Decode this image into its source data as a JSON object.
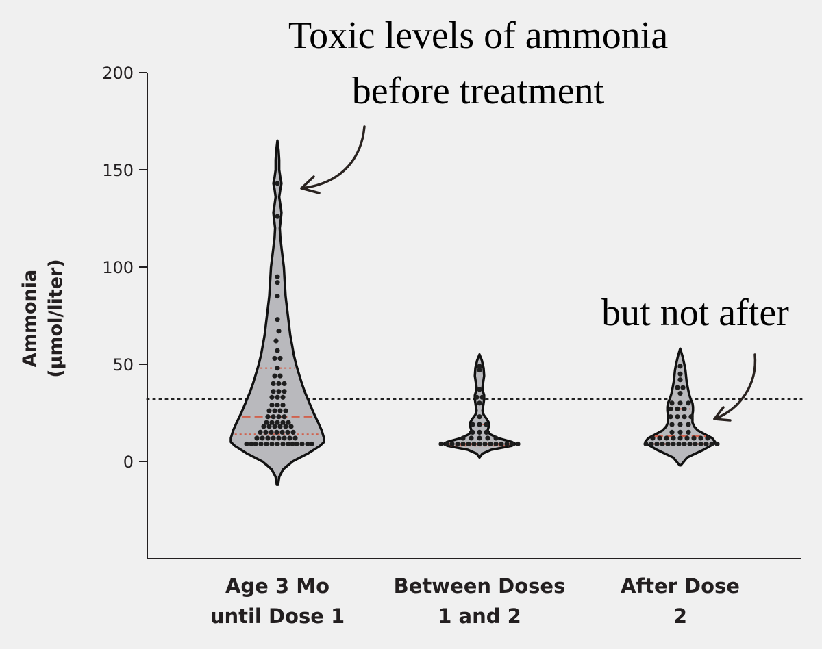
{
  "chart_data": {
    "type": "violin",
    "ylabel_line1": "Ammonia",
    "ylabel_line2": "(μmol/liter)",
    "ylim": [
      -50,
      200
    ],
    "yticks": [
      0,
      50,
      100,
      150,
      200
    ],
    "threshold": 32,
    "categories": [
      {
        "label_lines": [
          "Age 3 Mo",
          "until Dose 1"
        ],
        "median": 23,
        "q1": 14,
        "q3": 48,
        "profile": [
          [
            -12,
            1
          ],
          [
            -8,
            3
          ],
          [
            -4,
            10
          ],
          [
            0,
            26
          ],
          [
            4,
            52
          ],
          [
            8,
            73
          ],
          [
            10,
            80
          ],
          [
            12,
            80
          ],
          [
            16,
            76
          ],
          [
            20,
            70
          ],
          [
            25,
            62
          ],
          [
            30,
            55
          ],
          [
            35,
            48
          ],
          [
            40,
            42
          ],
          [
            45,
            37
          ],
          [
            50,
            32
          ],
          [
            55,
            28
          ],
          [
            60,
            25
          ],
          [
            65,
            22
          ],
          [
            70,
            20
          ],
          [
            75,
            18
          ],
          [
            80,
            16
          ],
          [
            85,
            14
          ],
          [
            90,
            13
          ],
          [
            95,
            12
          ],
          [
            100,
            11
          ],
          [
            105,
            9
          ],
          [
            110,
            7
          ],
          [
            115,
            5
          ],
          [
            120,
            4
          ],
          [
            125,
            6
          ],
          [
            128,
            7
          ],
          [
            132,
            5
          ],
          [
            136,
            3
          ],
          [
            140,
            5
          ],
          [
            143,
            7
          ],
          [
            146,
            5
          ],
          [
            150,
            3
          ],
          [
            155,
            3
          ],
          [
            160,
            2
          ],
          [
            165,
            0
          ]
        ],
        "points": [
          [
            -45,
            9
          ],
          [
            -38,
            9
          ],
          [
            -32,
            9
          ],
          [
            -24,
            9
          ],
          [
            -16,
            9
          ],
          [
            -8,
            9
          ],
          [
            0,
            9
          ],
          [
            8,
            9
          ],
          [
            16,
            9
          ],
          [
            22,
            9
          ],
          [
            28,
            9
          ],
          [
            36,
            9
          ],
          [
            44,
            9
          ],
          [
            50,
            9
          ],
          [
            -30,
            12
          ],
          [
            -22,
            12
          ],
          [
            -14,
            12
          ],
          [
            -6,
            12
          ],
          [
            2,
            12
          ],
          [
            10,
            12
          ],
          [
            18,
            12
          ],
          [
            26,
            12
          ],
          [
            -25,
            15
          ],
          [
            -17,
            15
          ],
          [
            -9,
            15
          ],
          [
            -1,
            15
          ],
          [
            7,
            15
          ],
          [
            15,
            15
          ],
          [
            23,
            15
          ],
          [
            -20,
            18
          ],
          [
            -12,
            18
          ],
          [
            -4,
            18
          ],
          [
            4,
            18
          ],
          [
            12,
            18
          ],
          [
            20,
            18
          ],
          [
            -16,
            20
          ],
          [
            -8,
            20
          ],
          [
            0,
            20
          ],
          [
            8,
            20
          ],
          [
            16,
            20
          ],
          [
            -14,
            23
          ],
          [
            -6,
            23
          ],
          [
            2,
            23
          ],
          [
            10,
            23
          ],
          [
            -12,
            26
          ],
          [
            -4,
            26
          ],
          [
            4,
            26
          ],
          [
            12,
            26
          ],
          [
            -8,
            29
          ],
          [
            0,
            29
          ],
          [
            8,
            29
          ],
          [
            -8,
            33
          ],
          [
            0,
            33
          ],
          [
            8,
            33
          ],
          [
            -6,
            36
          ],
          [
            2,
            36
          ],
          [
            10,
            36
          ],
          [
            -6,
            40
          ],
          [
            2,
            40
          ],
          [
            10,
            40
          ],
          [
            -4,
            44
          ],
          [
            4,
            44
          ],
          [
            0,
            48
          ],
          [
            -4,
            53
          ],
          [
            4,
            53
          ],
          [
            0,
            57
          ],
          [
            -2,
            62
          ],
          [
            2,
            67
          ],
          [
            0,
            73
          ],
          [
            0,
            85
          ],
          [
            0,
            92
          ],
          [
            0,
            95
          ],
          [
            0,
            126
          ],
          [
            0,
            143
          ]
        ]
      },
      {
        "label_lines": [
          "Between Doses",
          "1 and 2"
        ],
        "median": 9,
        "q1": 8,
        "q3": 19,
        "profile": [
          [
            2,
            0
          ],
          [
            4,
            5
          ],
          [
            6,
            20
          ],
          [
            8,
            55
          ],
          [
            9,
            62
          ],
          [
            10,
            56
          ],
          [
            12,
            32
          ],
          [
            14,
            18
          ],
          [
            16,
            14
          ],
          [
            18,
            16
          ],
          [
            20,
            16
          ],
          [
            22,
            12
          ],
          [
            24,
            7
          ],
          [
            26,
            5
          ],
          [
            28,
            6
          ],
          [
            30,
            7
          ],
          [
            32,
            8
          ],
          [
            34,
            8
          ],
          [
            36,
            6
          ],
          [
            38,
            5
          ],
          [
            40,
            6
          ],
          [
            44,
            8
          ],
          [
            48,
            7
          ],
          [
            52,
            4
          ],
          [
            55,
            0
          ]
        ],
        "points": [
          [
            -56,
            9
          ],
          [
            -48,
            9
          ],
          [
            -40,
            9
          ],
          [
            -32,
            9
          ],
          [
            -24,
            9
          ],
          [
            -16,
            9
          ],
          [
            -8,
            9
          ],
          [
            0,
            9
          ],
          [
            8,
            9
          ],
          [
            16,
            9
          ],
          [
            24,
            9
          ],
          [
            32,
            9
          ],
          [
            40,
            9
          ],
          [
            48,
            9
          ],
          [
            56,
            9
          ],
          [
            -24,
            12
          ],
          [
            -12,
            12
          ],
          [
            0,
            12
          ],
          [
            12,
            12
          ],
          [
            24,
            12
          ],
          [
            -10,
            15
          ],
          [
            0,
            15
          ],
          [
            10,
            15
          ],
          [
            -10,
            19
          ],
          [
            0,
            19
          ],
          [
            10,
            19
          ],
          [
            0,
            23
          ],
          [
            0,
            30
          ],
          [
            -4,
            33
          ],
          [
            4,
            33
          ],
          [
            0,
            37
          ],
          [
            0,
            47
          ],
          [
            0,
            49
          ]
        ]
      },
      {
        "label_lines": [
          "After Dose",
          "2"
        ],
        "median": 13,
        "q1": 9,
        "q3": 27,
        "profile": [
          [
            -2,
            1
          ],
          [
            2,
            12
          ],
          [
            6,
            40
          ],
          [
            9,
            58
          ],
          [
            10,
            60
          ],
          [
            12,
            55
          ],
          [
            14,
            42
          ],
          [
            16,
            30
          ],
          [
            18,
            24
          ],
          [
            20,
            21
          ],
          [
            22,
            21
          ],
          [
            24,
            21
          ],
          [
            26,
            22
          ],
          [
            28,
            22
          ],
          [
            30,
            21
          ],
          [
            32,
            18
          ],
          [
            35,
            15
          ],
          [
            38,
            13
          ],
          [
            41,
            11
          ],
          [
            44,
            10
          ],
          [
            47,
            9
          ],
          [
            50,
            7
          ],
          [
            54,
            4
          ],
          [
            58,
            0
          ]
        ],
        "points": [
          [
            -50,
            9
          ],
          [
            -42,
            9
          ],
          [
            -34,
            9
          ],
          [
            -26,
            9
          ],
          [
            -18,
            9
          ],
          [
            -10,
            9
          ],
          [
            -2,
            9
          ],
          [
            6,
            9
          ],
          [
            14,
            9
          ],
          [
            22,
            9
          ],
          [
            30,
            9
          ],
          [
            38,
            9
          ],
          [
            46,
            9
          ],
          [
            54,
            9
          ],
          [
            -40,
            12
          ],
          [
            -30,
            12
          ],
          [
            -20,
            12
          ],
          [
            -10,
            12
          ],
          [
            0,
            12
          ],
          [
            10,
            12
          ],
          [
            20,
            12
          ],
          [
            30,
            12
          ],
          [
            40,
            12
          ],
          [
            -12,
            15
          ],
          [
            0,
            15
          ],
          [
            12,
            15
          ],
          [
            -12,
            19
          ],
          [
            0,
            19
          ],
          [
            12,
            19
          ],
          [
            -14,
            23
          ],
          [
            -4,
            23
          ],
          [
            6,
            23
          ],
          [
            16,
            23
          ],
          [
            -14,
            27
          ],
          [
            -4,
            27
          ],
          [
            6,
            27
          ],
          [
            -12,
            30
          ],
          [
            0,
            30
          ],
          [
            12,
            30
          ],
          [
            0,
            35
          ],
          [
            -4,
            38
          ],
          [
            4,
            38
          ],
          [
            0,
            42
          ],
          [
            0,
            45
          ],
          [
            0,
            49
          ]
        ]
      }
    ]
  },
  "annotations": {
    "top_line1": "Toxic levels of ammonia",
    "top_line2": "before treatment",
    "right": "but not after"
  },
  "colors": {
    "violin_fill": "#b9b9bd",
    "violin_outline": "#111111",
    "points": "#1e1e1e",
    "median_line": "#d0614d",
    "quartile_line": "#d0614d",
    "threshold": "#222222",
    "axis": "#231f20",
    "background": "#f0f0f0"
  }
}
